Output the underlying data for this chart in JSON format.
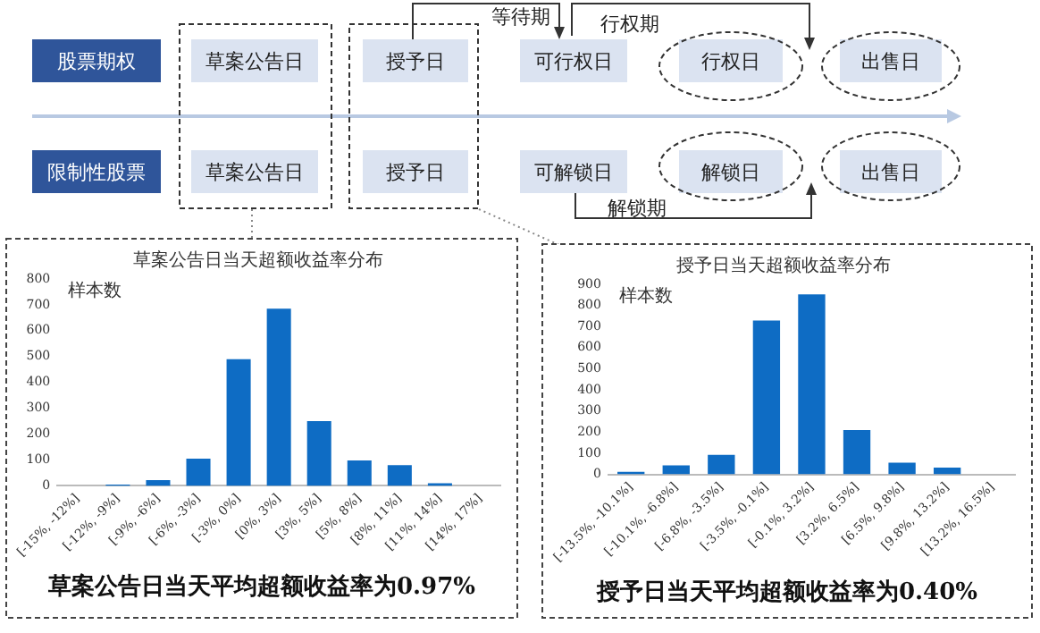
{
  "chart_data": [
    {
      "type": "other",
      "annotations": [
        "股票期权",
        "限制性股票",
        "草案公告日",
        "授予日",
        "可行权日",
        "行权日",
        "出售日",
        "草案公告日",
        "授予日",
        "可解锁日",
        "解锁日",
        "出售日",
        "等待期",
        "行权期",
        "解锁期"
      ]
    },
    {
      "type": "bar",
      "title": "草案公告日当天超额收益率分布",
      "ylabel": "样本数",
      "categories": [
        "[-15%, -12%]",
        "[-12%, -9%]",
        "[-9%, -6%]",
        "[-6%, -3%]",
        "[-3%, 0%]",
        "[0%, 3%]",
        "[3%, 5%]",
        "[5%, 8%]",
        "[8%, 11%]",
        "[11%, 14%]",
        "[14%, 17%]"
      ],
      "values": [
        0,
        5,
        22,
        105,
        490,
        685,
        250,
        98,
        80,
        10,
        0
      ],
      "color": "#0e6cc4",
      "ylim": [
        0,
        800
      ],
      "yticks": [
        0,
        100,
        200,
        300,
        400,
        500,
        600,
        700,
        800
      ],
      "grid": false,
      "annotations": [
        "草案公告日当天平均超额收益率为0.97%"
      ]
    },
    {
      "type": "bar",
      "title": "授予日当天超额收益率分布",
      "ylabel": "样本数",
      "categories": [
        "[-13.5%, -10.1%]",
        "[-10.1%, -6.8%]",
        "[-6.8%, -3.5%]",
        "[-3.5%, -0.1%]",
        "[-0.1%, 3.2%]",
        "[3.2%, 6.5%]",
        "[6.5%, 9.8%]",
        "[9.8%, 13.2%]",
        "[13.2%, 16.5%]"
      ],
      "values": [
        12,
        42,
        92,
        728,
        852,
        210,
        55,
        32,
        0
      ],
      "color": "#0e6cc4",
      "ylim": [
        0,
        900
      ],
      "yticks": [
        0,
        100,
        200,
        300,
        400,
        500,
        600,
        700,
        800,
        900
      ],
      "grid": false,
      "annotations": [
        "授予日当天平均超额收益率为0.40%"
      ]
    }
  ]
}
